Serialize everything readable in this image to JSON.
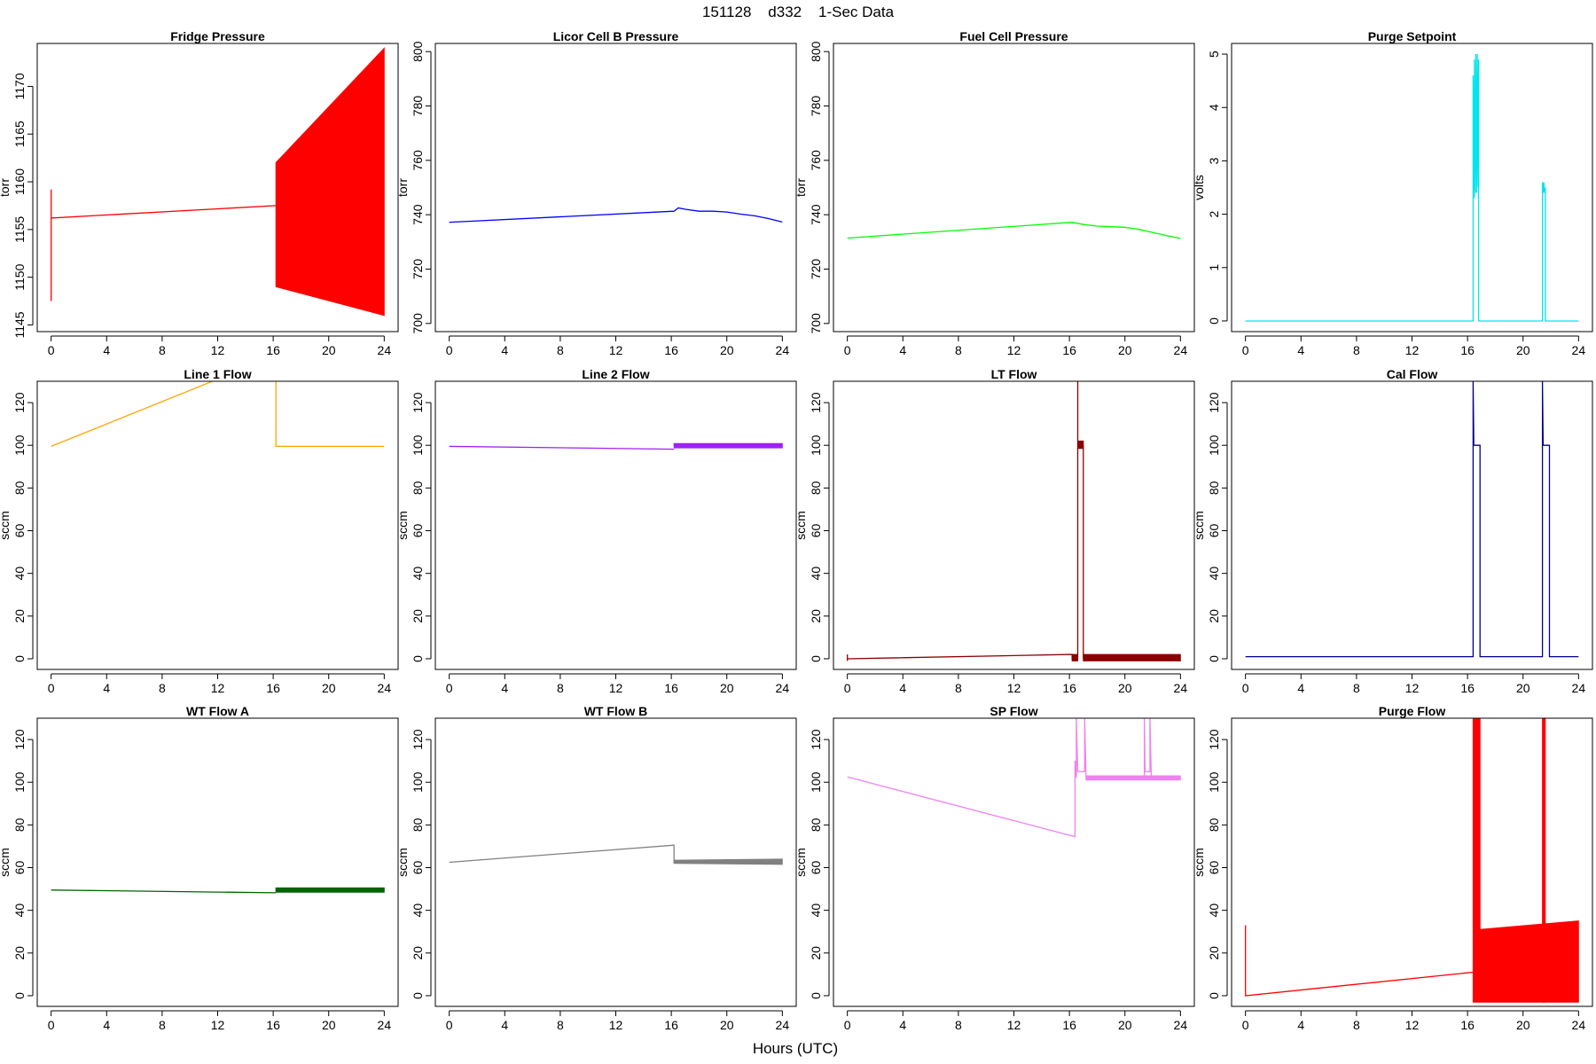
{
  "figure": {
    "title": "151128    d332    1-Sec Data",
    "xlabel": "Hours (UTC)"
  },
  "chart_data": [
    {
      "type": "line",
      "title": "Fridge Pressure",
      "ylabel": "torr",
      "color": "#ff0000",
      "xlim": [
        -1,
        25
      ],
      "ylim": [
        1144.3,
        1174.5
      ],
      "xticks": [
        0,
        4,
        8,
        12,
        16,
        20,
        24
      ],
      "yticks": [
        1145,
        1150,
        1155,
        1160,
        1165,
        1170
      ],
      "series": [
        {
          "x": [
            0,
            0,
            0,
            0,
            16.2
          ],
          "y": [
            1147.5,
            1159.2,
            1156.2,
            1156.2,
            1157.5
          ],
          "band": [
            16.2,
            24,
            1149,
            1162,
            1146,
            1174
          ]
        }
      ]
    },
    {
      "type": "line",
      "title": "Licor Cell B Pressure",
      "ylabel": "torr",
      "color": "#0000ff",
      "xlim": [
        -1,
        25
      ],
      "ylim": [
        697,
        803
      ],
      "xticks": [
        0,
        4,
        8,
        12,
        16,
        20,
        24
      ],
      "yticks": [
        700,
        720,
        740,
        760,
        780,
        800
      ],
      "series": [
        {
          "x": [
            0,
            16.2,
            16.5,
            17,
            18,
            19,
            20,
            21,
            22,
            23,
            24
          ],
          "y": [
            737.2,
            741.3,
            742.5,
            742,
            741.3,
            741.3,
            741,
            740.2,
            739.6,
            738.6,
            737.3
          ]
        }
      ]
    },
    {
      "type": "line",
      "title": "Fuel Cell Pressure",
      "ylabel": "torr",
      "color": "#00ff00",
      "xlim": [
        -1,
        25
      ],
      "ylim": [
        697,
        803
      ],
      "xticks": [
        0,
        4,
        8,
        12,
        16,
        20,
        24
      ],
      "yticks": [
        700,
        720,
        740,
        760,
        780,
        800
      ],
      "series": [
        {
          "x": [
            0,
            16.2,
            17,
            18,
            19,
            20,
            21,
            22,
            23,
            24
          ],
          "y": [
            731.4,
            737.2,
            736.4,
            735.8,
            735.6,
            735.4,
            734.6,
            733.5,
            732.3,
            731.3
          ]
        }
      ]
    },
    {
      "type": "line",
      "title": "Purge Setpoint",
      "ylabel": "volts",
      "color": "#00e5ee",
      "xlim": [
        -1,
        25
      ],
      "ylim": [
        -0.2,
        5.2
      ],
      "xticks": [
        0,
        4,
        8,
        12,
        16,
        20,
        24
      ],
      "yticks": [
        0,
        1,
        2,
        3,
        4,
        5
      ],
      "series": [
        {
          "x": [
            0,
            16.4,
            16.4,
            16.5,
            16.5,
            16.55,
            16.6,
            16.65,
            16.7,
            16.75,
            16.8,
            16.8,
            21.4,
            21.4,
            21.45,
            21.5,
            21.55,
            21.6,
            21.6,
            24
          ],
          "y": [
            0,
            0,
            4.6,
            2.3,
            4.9,
            2.4,
            5.0,
            2.4,
            5.0,
            2.5,
            4.9,
            0,
            0,
            2.6,
            2.4,
            2.6,
            2.4,
            2.5,
            0,
            0
          ]
        }
      ]
    },
    {
      "type": "line",
      "title": "Line 1 Flow",
      "ylabel": "sccm",
      "color": "#ffa500",
      "xlim": [
        -1,
        25
      ],
      "ylim": [
        -5,
        130
      ],
      "xticks": [
        0,
        4,
        8,
        12,
        16,
        20,
        24
      ],
      "yticks": [
        0,
        20,
        40,
        60,
        80,
        100,
        120
      ],
      "series": [
        {
          "x": [
            0,
            16.2,
            16.2,
            24
          ],
          "y": [
            99.5,
            142,
            99.5,
            99.5
          ]
        }
      ]
    },
    {
      "type": "line",
      "title": "Line 2 Flow",
      "ylabel": "sccm",
      "color": "#a020f0",
      "xlim": [
        -1,
        25
      ],
      "ylim": [
        -5,
        130
      ],
      "xticks": [
        0,
        4,
        8,
        12,
        16,
        20,
        24
      ],
      "yticks": [
        0,
        20,
        40,
        60,
        80,
        100,
        120
      ],
      "series": [
        {
          "x": [
            0,
            16.2
          ],
          "y": [
            99.5,
            98.2
          ],
          "band": [
            16.2,
            24,
            98.8,
            100.8,
            98.8,
            100.8
          ]
        }
      ]
    },
    {
      "type": "line",
      "title": "LT Flow",
      "ylabel": "sccm",
      "color": "#8b0000",
      "xlim": [
        -1,
        25
      ],
      "ylim": [
        -5,
        130
      ],
      "xticks": [
        0,
        4,
        8,
        12,
        16,
        20,
        24
      ],
      "yticks": [
        0,
        20,
        40,
        60,
        80,
        100,
        120
      ],
      "series": [
        {
          "x": [
            0,
            0,
            0,
            16.2,
            16.2,
            16.6,
            16.6,
            16.6,
            16.6,
            17.0,
            17.0
          ],
          "y": [
            2,
            -1,
            0,
            2,
            0,
            0,
            130,
            100,
            101,
            100,
            0
          ],
          "band": [
            16.2,
            16.6,
            -1,
            2,
            -1,
            2
          ]
        },
        {
          "x": [
            17.0,
            24
          ],
          "y": [
            0,
            0
          ],
          "band": [
            17.0,
            24,
            -1,
            2,
            -1,
            2
          ]
        },
        {
          "x": [
            16.6,
            17.0
          ],
          "y": [
            99,
            99
          ],
          "band": [
            16.65,
            17.0,
            98.5,
            102,
            98.5,
            102
          ]
        }
      ]
    },
    {
      "type": "line",
      "title": "Cal Flow",
      "ylabel": "sccm",
      "color": "#00008b",
      "xlim": [
        -1,
        25
      ],
      "ylim": [
        -5,
        130
      ],
      "xticks": [
        0,
        4,
        8,
        12,
        16,
        20,
        24
      ],
      "yticks": [
        0,
        20,
        40,
        60,
        80,
        100,
        120
      ],
      "series": [
        {
          "x": [
            0,
            16.4,
            16.4,
            16.45,
            16.5,
            16.9,
            16.9,
            21.4,
            21.4,
            21.45,
            21.5,
            21.9,
            21.9,
            24
          ],
          "y": [
            1,
            1,
            130,
            100,
            100,
            100,
            1,
            1,
            130,
            100,
            100,
            100,
            1,
            1
          ]
        }
      ]
    },
    {
      "type": "line",
      "title": "WT Flow A",
      "ylabel": "sccm",
      "color": "#006400",
      "xlim": [
        -1,
        25
      ],
      "ylim": [
        -5,
        130
      ],
      "xticks": [
        0,
        4,
        8,
        12,
        16,
        20,
        24
      ],
      "yticks": [
        0,
        20,
        40,
        60,
        80,
        100,
        120
      ],
      "series": [
        {
          "x": [
            0,
            16.2
          ],
          "y": [
            49.5,
            48.2
          ],
          "band": [
            16.2,
            24,
            48.5,
            50.5,
            48.5,
            50.5
          ]
        }
      ]
    },
    {
      "type": "line",
      "title": "WT Flow B",
      "ylabel": "sccm",
      "color": "#808080",
      "xlim": [
        -1,
        25
      ],
      "ylim": [
        -5,
        130
      ],
      "xticks": [
        0,
        4,
        8,
        12,
        16,
        20,
        24
      ],
      "yticks": [
        0,
        20,
        40,
        60,
        80,
        100,
        120
      ],
      "series": [
        {
          "x": [
            0,
            16.2,
            16.2,
            24
          ],
          "y": [
            62.5,
            70.5,
            62.5,
            62.5
          ],
          "band": [
            16.2,
            24,
            62,
            63.5,
            61.5,
            64
          ]
        }
      ]
    },
    {
      "type": "line",
      "title": "SP Flow",
      "ylabel": "sccm",
      "color": "#ee82ee",
      "xlim": [
        -1,
        25
      ],
      "ylim": [
        -5,
        130
      ],
      "xticks": [
        0,
        4,
        8,
        12,
        16,
        20,
        24
      ],
      "yticks": [
        0,
        20,
        40,
        60,
        80,
        100,
        120
      ],
      "series": [
        {
          "x": [
            0,
            16.4,
            16.4,
            16.5,
            16.5,
            16.6,
            16.6,
            17.1,
            17.1,
            17.2,
            21.4,
            21.4,
            21.45,
            21.5,
            21.8,
            21.8,
            21.9,
            24
          ],
          "y": [
            102.5,
            74.5,
            110,
            102,
            130,
            105,
            105,
            105,
            130,
            102,
            102,
            130,
            105,
            105,
            105,
            130,
            102,
            102
          ],
          "band": [
            17.2,
            24,
            101,
            103,
            101,
            103
          ]
        }
      ]
    },
    {
      "type": "line",
      "title": "Purge Flow",
      "ylabel": "sccm",
      "color": "#ff0000",
      "xlim": [
        -1,
        25
      ],
      "ylim": [
        -5,
        130
      ],
      "xticks": [
        0,
        4,
        8,
        12,
        16,
        20,
        24
      ],
      "yticks": [
        0,
        20,
        40,
        60,
        80,
        100,
        120
      ],
      "series": [
        {
          "x": [
            0,
            0,
            0,
            16.4
          ],
          "y": [
            33,
            0,
            0,
            11
          ],
          "band": [
            16.4,
            16.9,
            -3,
            130,
            -3,
            130
          ]
        },
        {
          "x": [
            16.9,
            21.4
          ],
          "y": [
            30,
            30
          ],
          "band": [
            16.9,
            24,
            -3,
            31,
            -3,
            35
          ]
        },
        {
          "x": [
            21.4,
            21.6
          ],
          "y": [
            130,
            130
          ],
          "band": [
            21.4,
            21.6,
            -3,
            130,
            -3,
            130
          ]
        }
      ]
    }
  ]
}
